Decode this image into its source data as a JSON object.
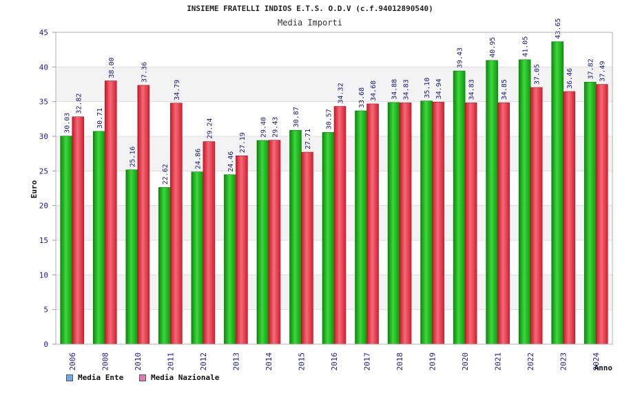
{
  "chart_data": {
    "type": "bar",
    "title": "INSIEME FRATELLI INDIOS E.T.S. O.D.V (c.f.94012890540)",
    "subtitle": "Media Importi",
    "xlabel": "Anno",
    "ylabel": "Euro",
    "ylim": [
      0,
      45
    ],
    "yticks": [
      "0",
      "5",
      "10",
      "15",
      "20",
      "25",
      "30",
      "35",
      "40",
      "45"
    ],
    "grid": true,
    "legend_position": "bottom-left",
    "categories": [
      "2006",
      "2008",
      "2010",
      "2011",
      "2012",
      "2013",
      "2014",
      "2015",
      "2016",
      "2017",
      "2018",
      "2019",
      "2020",
      "2021",
      "2022",
      "2023",
      "2024"
    ],
    "series": [
      {
        "name": "Media Ente",
        "legend_color": "#6fa8e8",
        "color": "#12b012",
        "values": [
          30.03,
          30.71,
          25.16,
          22.62,
          24.86,
          24.46,
          29.4,
          30.87,
          30.57,
          33.68,
          34.88,
          35.1,
          39.43,
          40.95,
          41.05,
          43.65,
          37.82
        ],
        "labels": [
          "30.03",
          "30.71",
          "25.16",
          "22.62",
          "24.86",
          "24.46",
          "29.40",
          "30.87",
          "30.57",
          "33.68",
          "34.88",
          "35.10",
          "39.43",
          "40.95",
          "41.05",
          "43.65",
          "37.82"
        ]
      },
      {
        "name": "Media Nazionale",
        "legend_color": "#e07ab0",
        "color": "#e0283a",
        "values": [
          32.82,
          38.0,
          37.36,
          34.79,
          29.24,
          27.19,
          29.43,
          27.71,
          34.32,
          34.68,
          34.83,
          34.94,
          34.83,
          34.85,
          37.05,
          36.46,
          37.49
        ],
        "labels": [
          "32.82",
          "38.00",
          "37.36",
          "34.79",
          "29.24",
          "27.19",
          "29.43",
          "27.71",
          "34.32",
          "34.68",
          "34.83",
          "34.94",
          "34.83",
          "34.85",
          "37.05",
          "36.46",
          "37.49"
        ]
      }
    ]
  }
}
